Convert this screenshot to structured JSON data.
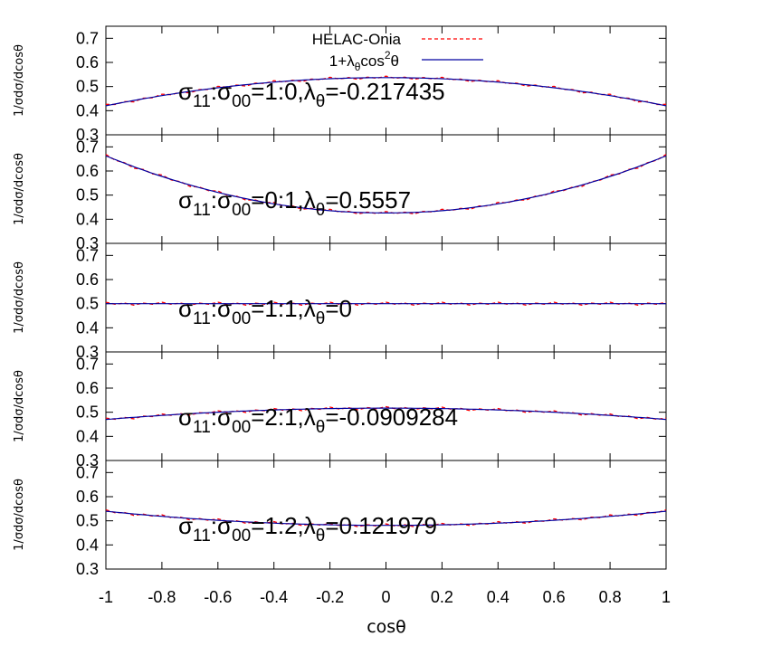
{
  "chart_data": [
    {
      "type": "line",
      "panel": 1,
      "annotation": "σ11:σ00=1:0,λθ=-0.217435",
      "annotation_parts": {
        "s1": "σ",
        "sub1": "11",
        "colon": ":σ",
        "sub2": "00",
        "ratio": "=1:0,",
        "lam": "λ",
        "sub3": "θ",
        "val": "=-0.217435"
      },
      "ylabel": "1/σdσ/dcosθ",
      "ylim": [
        0.3,
        0.75
      ],
      "yticks": [
        "0.3",
        "0.4",
        "0.5",
        "0.6",
        "0.7"
      ],
      "x": [
        -1,
        -0.8,
        -0.6,
        -0.4,
        -0.2,
        0,
        0.2,
        0.4,
        0.6,
        0.8,
        1
      ],
      "lambda": -0.217435,
      "series": [
        {
          "name": "HELAC-Onia",
          "values": [
            0.42,
            0.46,
            0.49,
            0.52,
            0.535,
            0.54,
            0.535,
            0.52,
            0.49,
            0.46,
            0.42
          ]
        },
        {
          "name": "1+λθcos2θ",
          "values": [
            0.421,
            0.461,
            0.492,
            0.516,
            0.532,
            0.537,
            0.532,
            0.516,
            0.492,
            0.461,
            0.421
          ]
        }
      ]
    },
    {
      "type": "line",
      "panel": 2,
      "annotation": "σ11:σ00=0:1,λθ=0.5557",
      "annotation_parts": {
        "s1": "σ",
        "sub1": "11",
        "colon": ":σ",
        "sub2": "00",
        "ratio": "=0:1,",
        "lam": "λ",
        "sub3": "θ",
        "val": "=0.5557"
      },
      "ylabel": "1/σdσ/dcosθ",
      "ylim": [
        0.3,
        0.75
      ],
      "yticks": [
        "0.3",
        "0.4",
        "0.5",
        "0.6",
        "0.7"
      ],
      "x": [
        -1,
        -0.8,
        -0.6,
        -0.4,
        -0.2,
        0,
        0.2,
        0.4,
        0.6,
        0.8,
        1
      ],
      "lambda": 0.5557,
      "series": [
        {
          "name": "HELAC-Onia",
          "values": [
            0.655,
            0.58,
            0.52,
            0.47,
            0.44,
            0.43,
            0.44,
            0.47,
            0.52,
            0.58,
            0.655
          ]
        },
        {
          "name": "1+λθcos2θ",
          "values": [
            0.655,
            0.58,
            0.517,
            0.472,
            0.444,
            0.426,
            0.444,
            0.472,
            0.517,
            0.58,
            0.655
          ]
        }
      ]
    },
    {
      "type": "line",
      "panel": 3,
      "annotation": "σ11:σ00=1:1,λθ=0",
      "annotation_parts": {
        "s1": "σ",
        "sub1": "11",
        "colon": ":σ",
        "sub2": "00",
        "ratio": "=1:1,",
        "lam": "λ",
        "sub3": "θ",
        "val": "=0"
      },
      "ylabel": "1/σdσ/dcosθ",
      "ylim": [
        0.3,
        0.75
      ],
      "yticks": [
        "0.3",
        "0.4",
        "0.5",
        "0.6",
        "0.7"
      ],
      "x": [
        -1,
        -0.8,
        -0.6,
        -0.4,
        -0.2,
        0,
        0.2,
        0.4,
        0.6,
        0.8,
        1
      ],
      "lambda": 0,
      "series": [
        {
          "name": "HELAC-Onia",
          "values": [
            0.5,
            0.5,
            0.5,
            0.5,
            0.5,
            0.5,
            0.5,
            0.5,
            0.5,
            0.5,
            0.5
          ]
        },
        {
          "name": "1+λθcos2θ",
          "values": [
            0.5,
            0.5,
            0.5,
            0.5,
            0.5,
            0.5,
            0.5,
            0.5,
            0.5,
            0.5,
            0.5
          ]
        }
      ]
    },
    {
      "type": "line",
      "panel": 4,
      "annotation": "σ11:σ00=2:1,λθ=-0.0909284",
      "annotation_parts": {
        "s1": "σ",
        "sub1": "11",
        "colon": ":σ",
        "sub2": "00",
        "ratio": "=2:1,",
        "lam": "λ",
        "sub3": "θ",
        "val": "=-0.0909284"
      },
      "ylabel": "1/σdσ/dcosθ",
      "ylim": [
        0.3,
        0.75
      ],
      "yticks": [
        "0.3",
        "0.4",
        "0.5",
        "0.6",
        "0.7"
      ],
      "x": [
        -1,
        -0.8,
        -0.6,
        -0.4,
        -0.2,
        0,
        0.2,
        0.4,
        0.6,
        0.8,
        1
      ],
      "lambda": -0.0909284,
      "series": [
        {
          "name": "HELAC-Onia",
          "values": [
            0.47,
            0.485,
            0.5,
            0.51,
            0.515,
            0.52,
            0.515,
            0.51,
            0.5,
            0.485,
            0.47
          ]
        },
        {
          "name": "1+λθcos2θ",
          "values": [
            0.472,
            0.488,
            0.5,
            0.51,
            0.515,
            0.517,
            0.515,
            0.51,
            0.5,
            0.488,
            0.472
          ]
        }
      ]
    },
    {
      "type": "line",
      "panel": 5,
      "annotation": "σ11:σ00=1:2,λθ=0.121979",
      "annotation_parts": {
        "s1": "σ",
        "sub1": "11",
        "colon": ":σ",
        "sub2": "00",
        "ratio": "=1:2,",
        "lam": "λ",
        "sub3": "θ",
        "val": "=0.121979"
      },
      "ylabel": "1/σdσ/dcosθ",
      "ylim": [
        0.3,
        0.75
      ],
      "yticks": [
        "0.3",
        "0.4",
        "0.5",
        "0.6",
        "0.7"
      ],
      "x": [
        -1,
        -0.8,
        -0.6,
        -0.4,
        -0.2,
        0,
        0.2,
        0.4,
        0.6,
        0.8,
        1
      ],
      "lambda": 0.121979,
      "series": [
        {
          "name": "HELAC-Onia",
          "values": [
            0.54,
            0.52,
            0.505,
            0.49,
            0.483,
            0.48,
            0.483,
            0.49,
            0.505,
            0.52,
            0.54
          ]
        },
        {
          "name": "1+λθcos2θ",
          "values": [
            0.537,
            0.52,
            0.504,
            0.492,
            0.484,
            0.481,
            0.484,
            0.492,
            0.504,
            0.52,
            0.537
          ]
        }
      ]
    }
  ],
  "xaxis": {
    "label": "cosθ",
    "xlim": [
      -1,
      1
    ],
    "ticks": [
      -1,
      -0.8,
      -0.6,
      -0.4,
      -0.2,
      0,
      0.2,
      0.4,
      0.6,
      0.8,
      1
    ],
    "tick_labels": [
      "-1",
      "-0.8",
      "-0.6",
      "-0.4",
      "-0.2",
      "0",
      "0.2",
      "0.4",
      "0.6",
      "0.8",
      "1"
    ]
  },
  "legend": {
    "placement": "top-center",
    "entries": [
      {
        "label": "HELAC-Onia",
        "style": "dashed",
        "color": "#ff0000"
      },
      {
        "label_parts": {
          "a": "1+",
          "lam": "λ",
          "sub": "θ",
          "b": "cos",
          "sup": "2",
          "c": "θ"
        },
        "style": "solid",
        "color": "#0000a0"
      }
    ]
  },
  "colors": {
    "helac": "#ff0000",
    "fit": "#0000a0",
    "axis": "#000000"
  }
}
